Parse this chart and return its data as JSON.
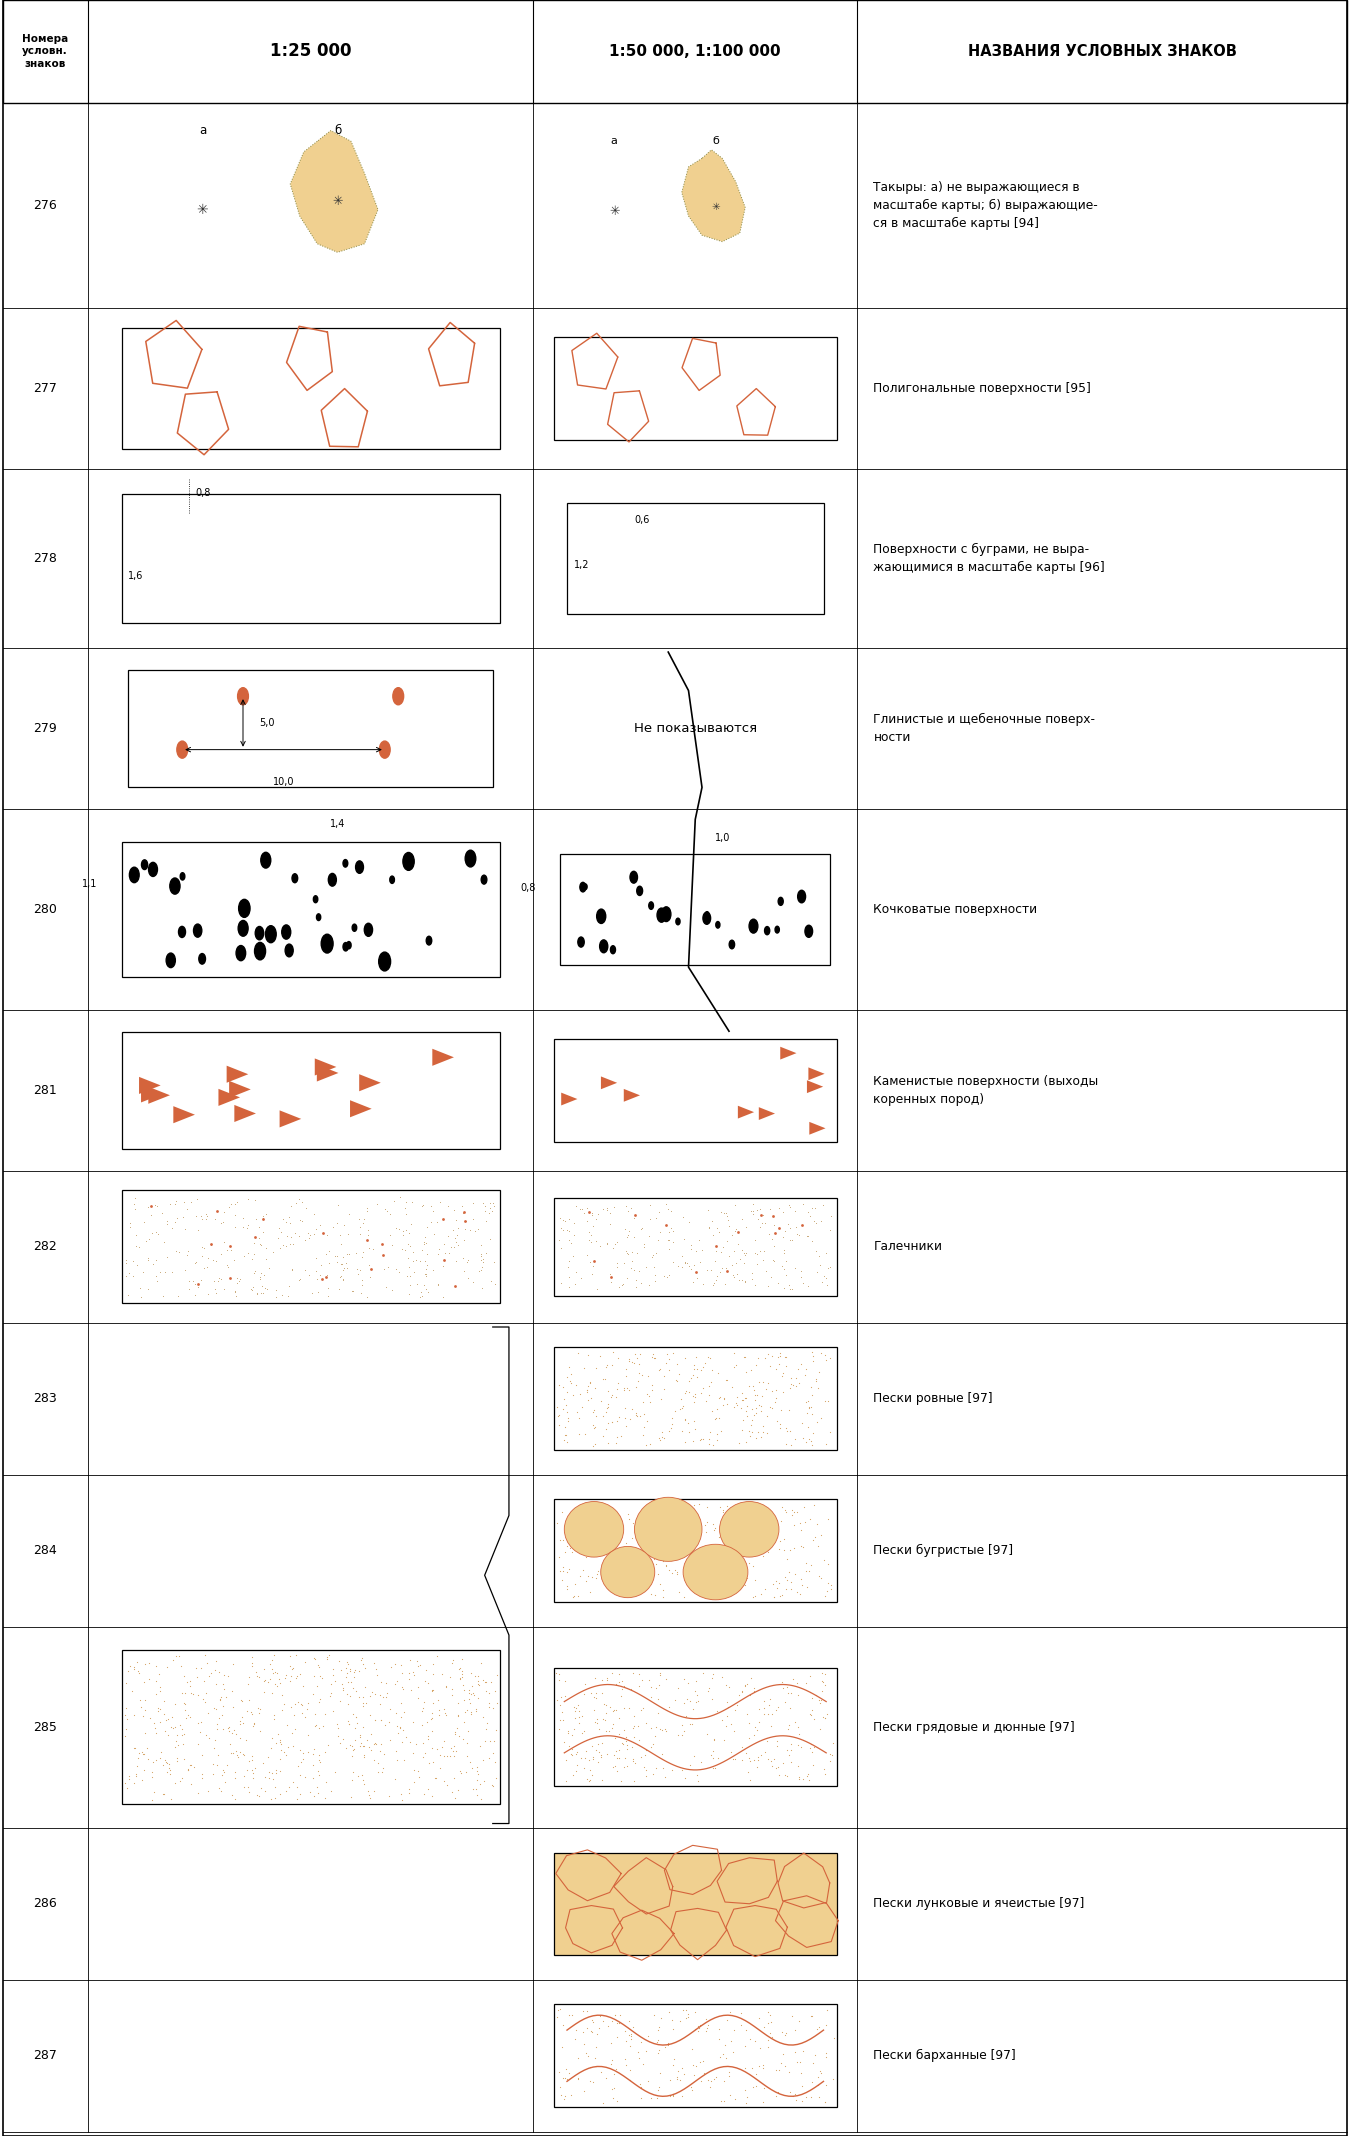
{
  "rows": [
    {
      "num": "276",
      "name": "Такыры: а) не выражающиеся в\nмасштабе карты; б) выражающие-\nся в масштабе карты 94"
    },
    {
      "num": "277",
      "name": "Полигональные поверхности 95"
    },
    {
      "num": "278",
      "name": "Поверхности с буграми, не выра-\nжающимися в масштабе карты 96"
    },
    {
      "num": "279",
      "name": "Глинистые и щебеночные поверх-\nности"
    },
    {
      "num": "280",
      "name": "Кочковатые поверхности"
    },
    {
      "num": "281",
      "name": "Каменистые поверхности (выходы\nкоренных пород)"
    },
    {
      "num": "282",
      "name": "Галечники"
    },
    {
      "num": "283",
      "name": "Пески ровные 97"
    },
    {
      "num": "284",
      "name": "Пески бугристые 97"
    },
    {
      "num": "285",
      "name": "Пески грядовые и дюнные 97"
    },
    {
      "num": "286",
      "name": "Пески лунковые и ячеистые 97"
    },
    {
      "num": "287",
      "name": "Пески барханные 97"
    }
  ],
  "descriptions": [
    "Такыры: а) не выражающиеся в\nмасштабе карты; б) выражающие-\nся в масштабе карты [94]",
    "Полигональные поверхности [95]",
    "Поверхности с буграми, не выра-\nжающимися в масштабе карты [96]",
    "Глинистые и щебеночные поверх-\nности",
    "Кочковатые поверхности",
    "Каменистые поверхности (выходы\nкоренных пород)",
    "Галечники",
    "Пески ровные [97]",
    "Пески бугристые [97]",
    "Пески грядовые и дюнные [97]",
    "Пески лунковые и ячеистые [97]",
    "Пески барханные [97]"
  ],
  "bg_color": "#ffffff",
  "border_color": "#000000",
  "orange_color": "#d4643c",
  "sand_color": "#f0d090",
  "text_color": "#1a1a1a"
}
